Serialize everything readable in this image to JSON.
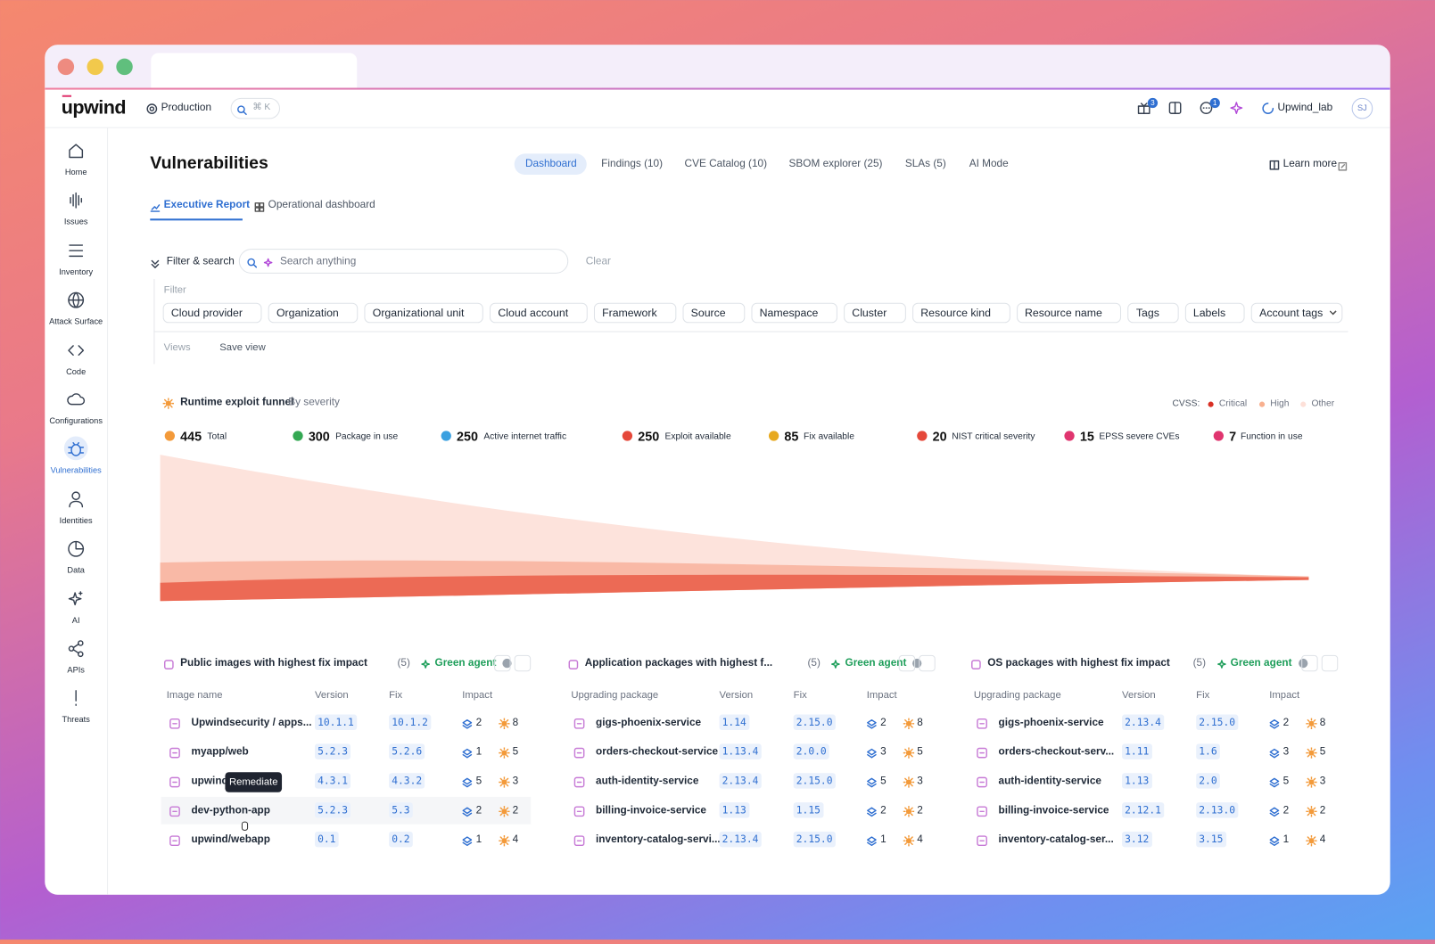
{
  "window": {
    "logo": "upwind",
    "environment": "Production",
    "search_hint": "⌘ K",
    "gift_badge": 3,
    "chat_badge": 1,
    "user": "Upwind_lab",
    "avatar": "SJ"
  },
  "sidebar": [
    "Home",
    "Issues",
    "Inventory",
    "Attack Surface",
    "Code",
    "Configurations",
    "Vulnerabilities",
    "Identities",
    "Data",
    "AI",
    "APIs",
    "Threats"
  ],
  "page": {
    "title": "Vulnerabilities",
    "tabs": [
      "Dashboard",
      "Findings (10)",
      "CVE Catalog (10)",
      "SBOM explorer (25)",
      "SLAs (5)",
      "AI Mode"
    ],
    "learn_more": "Learn more",
    "subtabs": [
      "Executive Report",
      "Operational dashboard"
    ]
  },
  "filters": {
    "toggle": "Filter & search",
    "search_placeholder": "Search anything",
    "clear": "Clear",
    "filter_label": "Filter",
    "chips": [
      "Cloud provider",
      "Organization",
      "Organizational unit",
      "Cloud account",
      "Framework",
      "Source",
      "Namespace",
      "Cluster",
      "Resource kind",
      "Resource name",
      "Tags",
      "Labels",
      "Account tags"
    ],
    "views": "Views",
    "save_view": "Save view"
  },
  "funnel": {
    "title": "Runtime exploit funnel",
    "subtitle": "By severity",
    "legend_label": "CVSS:",
    "legend": [
      "Critical",
      "High",
      "Other"
    ],
    "stats": [
      {
        "value": 445,
        "label": "Total"
      },
      {
        "value": 300,
        "label": "Package in use"
      },
      {
        "value": 250,
        "label": "Active internet traffic"
      },
      {
        "value": 250,
        "label": "Exploit available"
      },
      {
        "value": 85,
        "label": "Fix available"
      },
      {
        "value": 20,
        "label": "NIST critical severity"
      },
      {
        "value": 15,
        "label": "EPSS severe CVEs"
      },
      {
        "value": 7,
        "label": "Function in use"
      }
    ]
  },
  "tables": [
    {
      "title": "Public images with highest fix impact",
      "count": "(5)",
      "agent": "Green agent",
      "columns": [
        "Image name",
        "Version",
        "Fix",
        "Impact"
      ],
      "rows": [
        {
          "name": "Upwindsecurity / apps...",
          "version": "10.1.1",
          "fix": "10.1.2",
          "layers": 2,
          "vulns": 8
        },
        {
          "name": "myapp/web",
          "version": "5.2.3",
          "fix": "5.2.6",
          "layers": 1,
          "vulns": 5
        },
        {
          "name": "upwind/security",
          "version": "4.3.1",
          "fix": "4.3.2",
          "layers": 5,
          "vulns": 3
        },
        {
          "name": "dev-python-app",
          "version": "5.2.3",
          "fix": "5.3",
          "layers": 2,
          "vulns": 2
        },
        {
          "name": "upwind/webapp",
          "version": "0.1",
          "fix": "0.2",
          "layers": 1,
          "vulns": 4
        }
      ]
    },
    {
      "title": "Application packages with highest f...",
      "count": "(5)",
      "agent": "Green agent",
      "columns": [
        "Upgrading package",
        "Version",
        "Fix",
        "Impact"
      ],
      "rows": [
        {
          "name": "gigs-phoenix-service",
          "version": "1.14",
          "fix": "2.15.0",
          "layers": 2,
          "vulns": 8
        },
        {
          "name": "orders-checkout-service",
          "version": "1.13.4",
          "fix": "2.0.0",
          "layers": 3,
          "vulns": 5
        },
        {
          "name": "auth-identity-service",
          "version": "2.13.4",
          "fix": "2.15.0",
          "layers": 5,
          "vulns": 3
        },
        {
          "name": "billing-invoice-service",
          "version": "1.13",
          "fix": "1.15",
          "layers": 2,
          "vulns": 2
        },
        {
          "name": "inventory-catalog-servi...",
          "version": "2.13.4",
          "fix": "2.15.0",
          "layers": 1,
          "vulns": 4
        }
      ]
    },
    {
      "title": "OS packages with highest fix impact",
      "count": "(5)",
      "agent": "Green agent",
      "columns": [
        "Upgrading package",
        "Version",
        "Fix",
        "Impact"
      ],
      "rows": [
        {
          "name": "gigs-phoenix-service",
          "version": "2.13.4",
          "fix": "2.15.0",
          "layers": 2,
          "vulns": 8
        },
        {
          "name": "orders-checkout-serv...",
          "version": "1.11",
          "fix": "1.6",
          "layers": 3,
          "vulns": 5
        },
        {
          "name": "auth-identity-service",
          "version": "1.13",
          "fix": "2.0",
          "layers": 5,
          "vulns": 3
        },
        {
          "name": "billing-invoice-service",
          "version": "2.12.1",
          "fix": "2.13.0",
          "layers": 2,
          "vulns": 2
        },
        {
          "name": "inventory-catalog-ser...",
          "version": "3.12",
          "fix": "3.15",
          "layers": 1,
          "vulns": 4
        }
      ]
    }
  ],
  "tooltip": "Remediate"
}
